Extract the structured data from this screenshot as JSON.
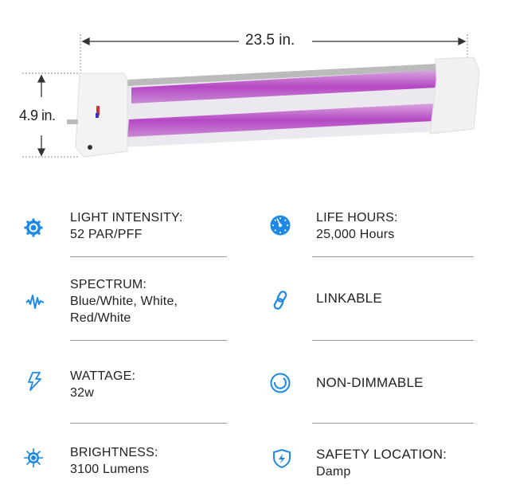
{
  "dimensions": {
    "width": "23.5 in.",
    "height": "4.9 in."
  },
  "accent_color": "#1e88e5",
  "specs": [
    {
      "icon": "gear-sun-icon",
      "label": "LIGHT INTENSITY:",
      "value": "52 PAR/PFF"
    },
    {
      "icon": "gauge-icon",
      "label": "LIFE HOURS:",
      "value": "25,000 Hours"
    },
    {
      "icon": "wave-icon",
      "label": "SPECTRUM:",
      "value": "Blue/White, White,",
      "value2": "Red/White"
    },
    {
      "icon": "link-icon",
      "label": "LINKABLE",
      "value": ""
    },
    {
      "icon": "lightning-icon",
      "label": "WATTAGE:",
      "value": "32w"
    },
    {
      "icon": "circle-icon",
      "label": "NON-DIMMABLE",
      "value": ""
    },
    {
      "icon": "sun-icon",
      "label": "BRIGHTNESS:",
      "value": "3100 Lumens"
    },
    {
      "icon": "shield-bolt-icon",
      "label": "SAFETY LOCATION:",
      "value": "Damp"
    }
  ]
}
